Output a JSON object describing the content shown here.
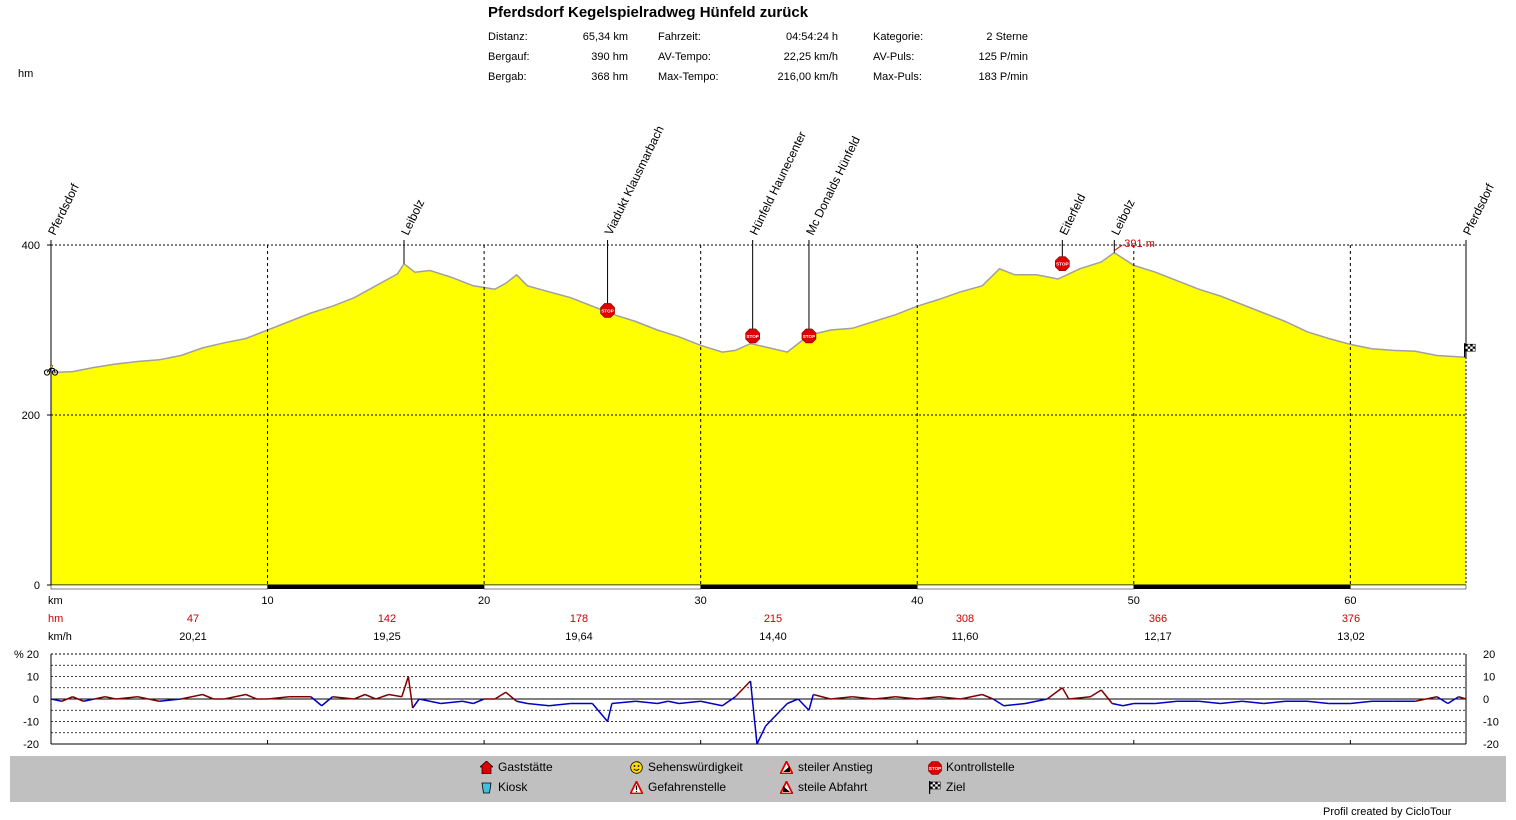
{
  "title": "Pferdsdorf Kegelspielradweg Hünfeld zurück",
  "stats": [
    {
      "label": "Distanz:",
      "value": "65,34 km"
    },
    {
      "label": "Bergauf:",
      "value": "390 hm"
    },
    {
      "label": "Bergab:",
      "value": "368 hm"
    },
    {
      "label": "Fahrzeit:",
      "value": "04:54:24 h"
    },
    {
      "label": "AV-Tempo:",
      "value": "22,25 km/h"
    },
    {
      "label": "Max-Tempo:",
      "value": "216,00 km/h"
    },
    {
      "label": "Kategorie:",
      "value": "2 Sterne"
    },
    {
      "label": "AV-Puls:",
      "value": "125 P/min"
    },
    {
      "label": "Max-Puls:",
      "value": "183 P/min"
    }
  ],
  "chart_data": [
    {
      "type": "area",
      "ylabel": "hm",
      "xlabel": "km",
      "xlim": [
        0,
        65.34
      ],
      "ylim": [
        0,
        400
      ],
      "x_ticks": [
        "10",
        "20",
        "30",
        "40",
        "50",
        "60"
      ],
      "y_ticks": [
        "0",
        "200",
        "400"
      ],
      "fill_color": "#ffff00",
      "line_color": "#a0a0a0",
      "max_label": "391 m",
      "max_point": {
        "km": 49.1,
        "m": 391
      },
      "profile": [
        [
          0,
          250
        ],
        [
          1,
          251
        ],
        [
          2,
          256
        ],
        [
          3,
          260
        ],
        [
          4,
          263
        ],
        [
          5,
          265
        ],
        [
          6,
          270
        ],
        [
          7,
          279
        ],
        [
          8,
          285
        ],
        [
          9,
          290
        ],
        [
          10,
          300
        ],
        [
          11,
          310
        ],
        [
          12,
          320
        ],
        [
          13,
          328
        ],
        [
          14,
          338
        ],
        [
          15,
          352
        ],
        [
          16,
          366
        ],
        [
          16.3,
          378
        ],
        [
          16.8,
          368
        ],
        [
          17.5,
          370
        ],
        [
          18.5,
          362
        ],
        [
          19.5,
          352
        ],
        [
          20.5,
          348
        ],
        [
          21,
          355
        ],
        [
          21.5,
          365
        ],
        [
          22,
          352
        ],
        [
          23,
          345
        ],
        [
          24,
          338
        ],
        [
          25,
          328
        ],
        [
          26,
          318
        ],
        [
          27,
          310
        ],
        [
          28,
          300
        ],
        [
          29,
          292
        ],
        [
          30,
          282
        ],
        [
          31,
          274
        ],
        [
          31.6,
          276
        ],
        [
          32.3,
          284
        ],
        [
          33,
          280
        ],
        [
          34,
          274
        ],
        [
          35,
          294
        ],
        [
          36,
          300
        ],
        [
          37,
          302
        ],
        [
          38,
          310
        ],
        [
          39,
          318
        ],
        [
          40,
          328
        ],
        [
          41,
          336
        ],
        [
          42,
          345
        ],
        [
          43,
          352
        ],
        [
          43.8,
          372
        ],
        [
          44.5,
          365
        ],
        [
          45.5,
          365
        ],
        [
          46.5,
          360
        ],
        [
          47.5,
          372
        ],
        [
          48.5,
          380
        ],
        [
          49.1,
          391
        ],
        [
          50,
          376
        ],
        [
          51,
          368
        ],
        [
          52,
          358
        ],
        [
          53,
          348
        ],
        [
          54,
          340
        ],
        [
          55,
          330
        ],
        [
          56,
          320
        ],
        [
          57,
          310
        ],
        [
          58,
          298
        ],
        [
          59,
          290
        ],
        [
          60,
          283
        ],
        [
          61,
          278
        ],
        [
          62,
          276
        ],
        [
          63,
          275
        ],
        [
          64,
          270
        ],
        [
          65.34,
          268
        ]
      ],
      "waypoints": [
        {
          "name": "Pferdsdorf",
          "km": 0,
          "m": 250,
          "stop": false
        },
        {
          "name": "Leibolz",
          "km": 16.3,
          "m": 378,
          "stop": false
        },
        {
          "name": "Viadukt Klausmarbach",
          "km": 25.7,
          "m": 323,
          "stop": true
        },
        {
          "name": "Hünfeld Haunecenter",
          "km": 32.4,
          "m": 293,
          "stop": true
        },
        {
          "name": "Mc Donalds Hünfeld",
          "km": 35,
          "m": 293,
          "stop": true
        },
        {
          "name": "Eiterfeld",
          "km": 46.7,
          "m": 378,
          "stop": true
        },
        {
          "name": "Leibolz",
          "km": 49.1,
          "m": 391,
          "stop": false
        },
        {
          "name": "Pferdsdorf",
          "km": 65.34,
          "m": 268,
          "stop": false
        }
      ],
      "segments": {
        "hm_label": "hm",
        "kmh_label": "km/h",
        "km_label": "km",
        "hm": [
          "47",
          "142",
          "178",
          "215",
          "308",
          "366",
          "376"
        ],
        "kmh": [
          "20,21",
          "19,25",
          "19,64",
          "14,40",
          "11,60",
          "12,17",
          "13,02"
        ]
      }
    },
    {
      "type": "line",
      "ylabel": "%",
      "ylim": [
        -20,
        20
      ],
      "y_ticks": [
        "20",
        "10",
        "0",
        "-10",
        "-20"
      ],
      "up_color": "#800000",
      "down_color": "#0000c0",
      "gradient": [
        [
          0,
          0
        ],
        [
          0.5,
          -1
        ],
        [
          1,
          1
        ],
        [
          1.5,
          -1
        ],
        [
          2,
          0
        ],
        [
          2.5,
          1
        ],
        [
          3,
          0
        ],
        [
          4,
          1
        ],
        [
          5,
          -1
        ],
        [
          6,
          0
        ],
        [
          7,
          2
        ],
        [
          7.5,
          0
        ],
        [
          8,
          0
        ],
        [
          9,
          2
        ],
        [
          9.5,
          0
        ],
        [
          10,
          0
        ],
        [
          11,
          1
        ],
        [
          12,
          1
        ],
        [
          12.5,
          -3
        ],
        [
          13,
          1
        ],
        [
          14,
          0
        ],
        [
          14.5,
          2
        ],
        [
          15,
          0
        ],
        [
          15.6,
          2
        ],
        [
          16.2,
          1
        ],
        [
          16.5,
          10
        ],
        [
          16.7,
          -4
        ],
        [
          17,
          0
        ],
        [
          17.5,
          -1
        ],
        [
          18,
          -2
        ],
        [
          19,
          -1
        ],
        [
          19.5,
          -2
        ],
        [
          20,
          0
        ],
        [
          20.5,
          0
        ],
        [
          21,
          3
        ],
        [
          21.5,
          -1
        ],
        [
          22,
          -2
        ],
        [
          23,
          -3
        ],
        [
          24,
          -2
        ],
        [
          25,
          -2
        ],
        [
          25.7,
          -10
        ],
        [
          25.9,
          -2
        ],
        [
          27,
          -1
        ],
        [
          28,
          -2
        ],
        [
          28.5,
          -1
        ],
        [
          29,
          -2
        ],
        [
          30,
          -1
        ],
        [
          30.5,
          -2
        ],
        [
          31,
          -3
        ],
        [
          31.6,
          1
        ],
        [
          32.3,
          8
        ],
        [
          32.6,
          -20
        ],
        [
          33,
          -12
        ],
        [
          34,
          -2
        ],
        [
          34.5,
          0
        ],
        [
          35,
          -5
        ],
        [
          35.2,
          2
        ],
        [
          36,
          0
        ],
        [
          37,
          1
        ],
        [
          38,
          0
        ],
        [
          39,
          1
        ],
        [
          40,
          0
        ],
        [
          41,
          1
        ],
        [
          42,
          0
        ],
        [
          43,
          2
        ],
        [
          43.5,
          0
        ],
        [
          44,
          -3
        ],
        [
          45,
          -2
        ],
        [
          46,
          0
        ],
        [
          46.7,
          5
        ],
        [
          47,
          0
        ],
        [
          48,
          1
        ],
        [
          48.5,
          4
        ],
        [
          49,
          -2
        ],
        [
          49.5,
          -3
        ],
        [
          50,
          -2
        ],
        [
          51,
          -2
        ],
        [
          52,
          -1
        ],
        [
          53,
          -1
        ],
        [
          54,
          -2
        ],
        [
          55,
          -1
        ],
        [
          56,
          -2
        ],
        [
          57,
          -1
        ],
        [
          58,
          -1
        ],
        [
          59,
          -2
        ],
        [
          60,
          -2
        ],
        [
          61,
          -1
        ],
        [
          62,
          -1
        ],
        [
          63,
          -1
        ],
        [
          64,
          1
        ],
        [
          64.5,
          -2
        ],
        [
          65,
          1
        ],
        [
          65.34,
          0
        ]
      ]
    }
  ],
  "legend": [
    {
      "label": "Gaststätte",
      "icon": "house-icon"
    },
    {
      "label": "Kiosk",
      "icon": "kiosk-cup-icon"
    },
    {
      "label": "Sehenswürdigkeit",
      "icon": "smiley-icon"
    },
    {
      "label": "Gefahrenstelle",
      "icon": "warning-triangle-icon"
    },
    {
      "label": "steiler Anstieg",
      "icon": "steep-climb-icon"
    },
    {
      "label": "steile Abfahrt",
      "icon": "steep-descent-icon"
    },
    {
      "label": "Kontrollstelle",
      "icon": "stop-sign-icon"
    },
    {
      "label": "Ziel",
      "icon": "checkered-flag-icon"
    }
  ],
  "credit": "Profil created by CicloTour"
}
